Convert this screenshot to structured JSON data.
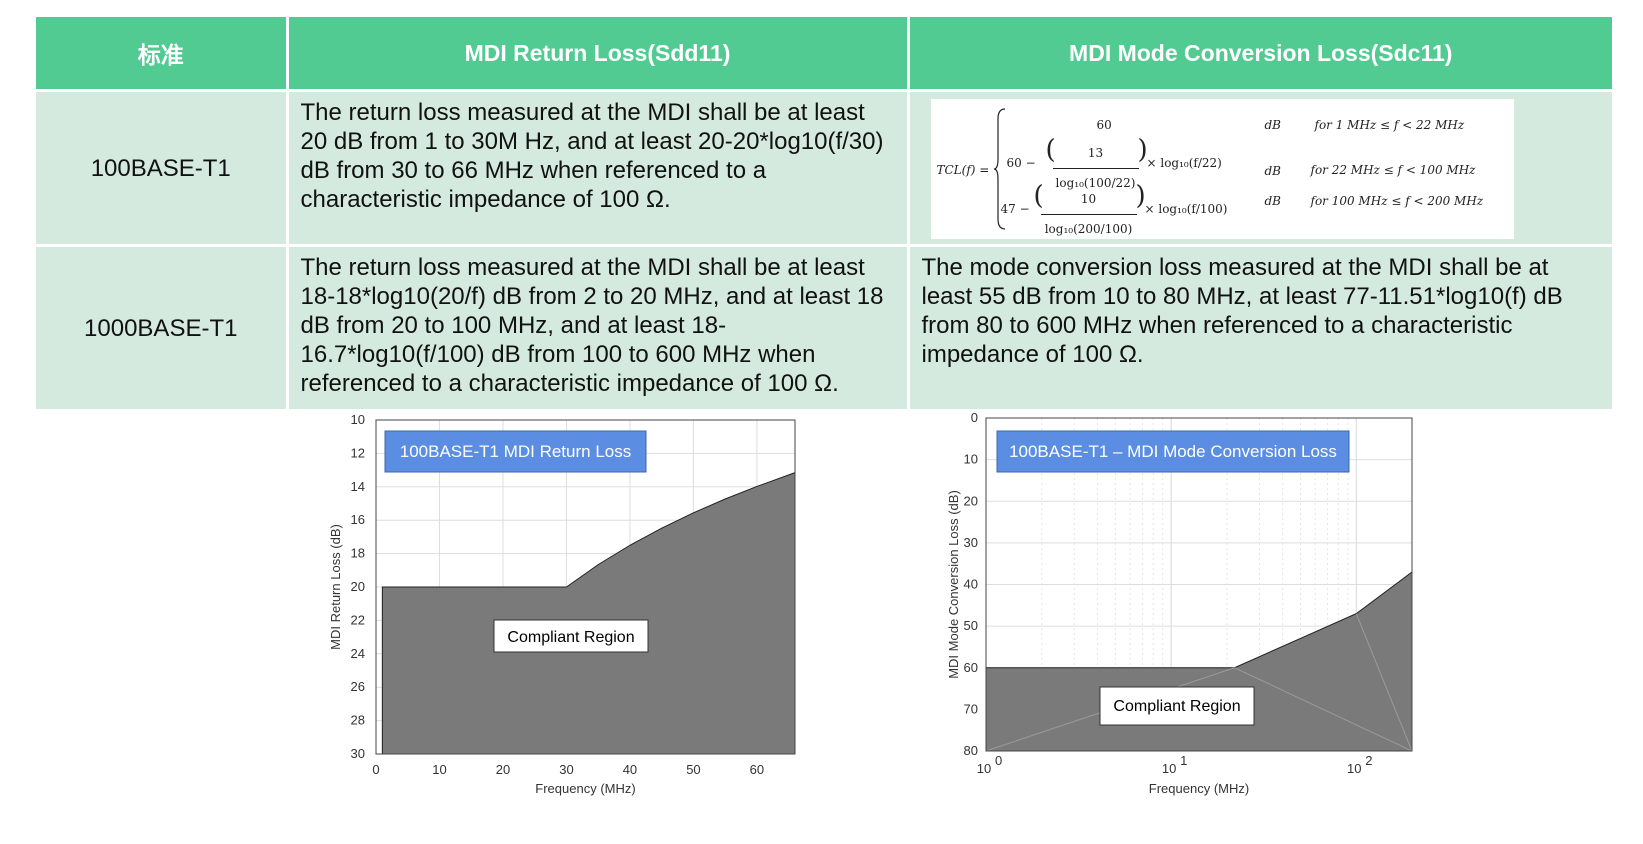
{
  "table": {
    "headers": [
      "标准",
      "MDI Return Loss(Sdd11)",
      "MDI Mode Conversion Loss(Sdc11)"
    ],
    "rows": [
      {
        "standard": "100BASE-T1",
        "return_loss": "The return loss measured at the MDI shall be at least 20 dB from 1 to 30M Hz, and at least 20-20*log10(f/30) dB from 30 to 66 MHz when referenced to a characteristic impedance of 100 Ω.",
        "mode_conversion": "",
        "formula": {
          "lhs": "TCL(f) =",
          "case1": {
            "expr": "60",
            "unit": "dB",
            "cond": "for 1 MHz ≤ f < 22 MHz"
          },
          "case2": {
            "prefix": "60 −",
            "num": "13",
            "den": "log₁₀(100/22)",
            "suffix": "× log₁₀(f/22)",
            "unit": "dB",
            "cond": "for 22 MHz ≤ f < 100 MHz"
          },
          "case3": {
            "prefix": "47 −",
            "num": "10",
            "den": "log₁₀(200/100)",
            "suffix": "× log₁₀(f/100)",
            "unit": "dB",
            "cond": "for 100 MHz ≤ f < 200 MHz"
          }
        }
      },
      {
        "standard": "1000BASE-T1",
        "return_loss": "The return loss measured at the MDI shall be at least 18-18*log10(20/f) dB from 2 to 20 MHz, and at least 18 dB from 20 to 100 MHz, and at least 18-16.7*log10(f/100) dB from 100 to 600 MHz when referenced to a characteristic impedance of 100 Ω.",
        "mode_conversion": "The mode conversion loss measured at the MDI shall be at least 55 dB from 10 to 80 MHz, at least 77-11.51*log10(f) dB from 80 to 600 MHz when referenced to a characteristic impedance of 100 Ω."
      }
    ]
  },
  "charts": {
    "return_loss": {
      "title": "100BASE-T1 MDI Return Loss",
      "xlabel": "Frequency (MHz)",
      "ylabel": "MDI Return Loss (dB)",
      "region_label": "Compliant Region",
      "x_ticks": [
        "0",
        "10",
        "20",
        "30",
        "40",
        "50",
        "60"
      ],
      "y_ticks": [
        "10",
        "12",
        "14",
        "16",
        "18",
        "20",
        "22",
        "24",
        "26",
        "28",
        "30"
      ]
    },
    "mode_conversion": {
      "title": "100BASE-T1 – MDI Mode Conversion Loss",
      "xlabel": "Frequency (MHz)",
      "ylabel": "MDI Mode Conversion Loss (dB)",
      "region_label": "Compliant Region",
      "x_ticks": [
        "10",
        "10",
        "10"
      ],
      "x_tick_exponents": [
        "0",
        "1",
        "2"
      ],
      "y_ticks": [
        "0",
        "10",
        "20",
        "30",
        "40",
        "50",
        "60",
        "70",
        "80"
      ]
    }
  },
  "chart_data": [
    {
      "type": "area",
      "title": "100BASE-T1 MDI Return Loss",
      "xlabel": "Frequency (MHz)",
      "ylabel": "MDI Return Loss (dB)",
      "xlim": [
        0,
        66
      ],
      "ylim": [
        30,
        10
      ],
      "y_inverted": true,
      "grid": true,
      "x": [
        1,
        30,
        35,
        40,
        45,
        50,
        55,
        60,
        66
      ],
      "y": [
        20,
        20,
        18.66,
        17.5,
        16.48,
        15.56,
        14.73,
        13.98,
        13.15
      ],
      "fill_to": 30,
      "annotations": [
        "Compliant Region"
      ]
    },
    {
      "type": "area",
      "title": "100BASE-T1 – MDI Mode Conversion Loss",
      "xlabel": "Frequency (MHz)",
      "ylabel": "MDI Mode Conversion Loss (dB)",
      "xscale": "log",
      "xlim": [
        1,
        200
      ],
      "ylim": [
        80,
        0
      ],
      "y_inverted": true,
      "grid": true,
      "x": [
        1,
        22,
        100,
        200
      ],
      "y": [
        60,
        60,
        47,
        37
      ],
      "fill_to": 80,
      "annotations": [
        "Compliant Region"
      ]
    }
  ]
}
